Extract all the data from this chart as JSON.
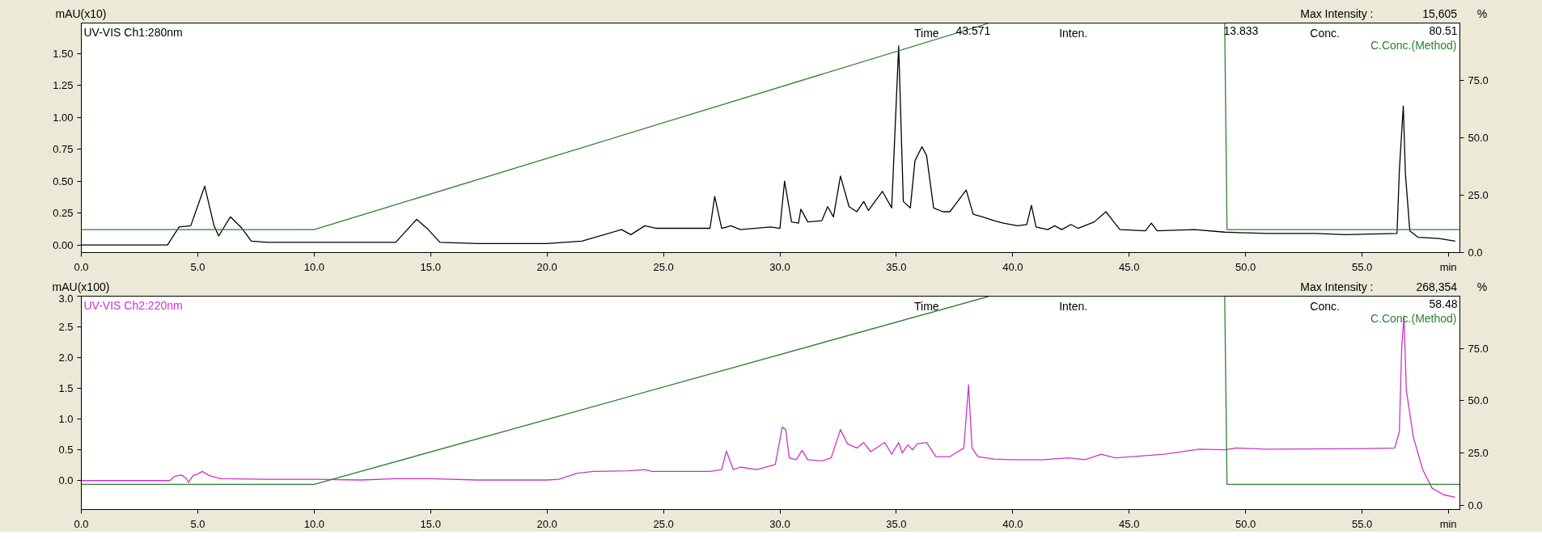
{
  "chart_data": [
    {
      "type": "line",
      "ylabel": "mAU(x10)",
      "y2label": "%",
      "grid": false,
      "xlim": [
        0,
        59.2
      ],
      "xticks": [
        {
          "value": 0,
          "label": "0.0"
        },
        {
          "value": 5,
          "label": "5.0"
        },
        {
          "value": 10,
          "label": "10.0"
        },
        {
          "value": 15,
          "label": "15.0"
        },
        {
          "value": 20,
          "label": "20.0"
        },
        {
          "value": 25,
          "label": "25.0"
        },
        {
          "value": 30,
          "label": "30.0"
        },
        {
          "value": 35,
          "label": "35.0"
        },
        {
          "value": 40,
          "label": "40.0"
        },
        {
          "value": 45,
          "label": "45.0"
        },
        {
          "value": 50,
          "label": "50.0"
        },
        {
          "value": 55,
          "label": "55.0"
        },
        {
          "value": 58.7,
          "label": "min"
        }
      ],
      "ylim": [
        -0.06,
        1.74
      ],
      "yticks": [
        {
          "value": 0,
          "label": "0.00"
        },
        {
          "value": 0.25,
          "label": "0.25"
        },
        {
          "value": 0.5,
          "label": "0.50"
        },
        {
          "value": 0.75,
          "label": "0.75"
        },
        {
          "value": 1,
          "label": "1.00"
        },
        {
          "value": 1.25,
          "label": "1.25"
        },
        {
          "value": 1.5,
          "label": "1.50"
        }
      ],
      "y2lim": [
        0,
        100
      ],
      "y2ticks": [
        {
          "value": 0,
          "label": "0.0"
        },
        {
          "value": 25,
          "label": "25.0"
        },
        {
          "value": 50,
          "label": "50.0"
        },
        {
          "value": 75,
          "label": "75.0"
        }
      ],
      "annotations": [
        "Time",
        "43.571",
        "Inten.",
        "13.833",
        "Conc.",
        "80.51",
        "Max Intensity :",
        "15,605"
      ],
      "series": [
        {
          "name": "UV-VIS Ch1:280nm",
          "color": "#000000",
          "x": [
            0,
            3.7,
            4.2,
            4.7,
            5.3,
            5.7,
            5.9,
            6.4,
            6.9,
            7.3,
            8,
            10,
            13.5,
            14.0,
            14.4,
            14.9,
            15.4,
            17,
            20,
            21.5,
            23.2,
            23.6,
            24.2,
            24.7,
            27.0,
            27.2,
            27.5,
            27.9,
            28.3,
            29.6,
            30.0,
            30.2,
            30.5,
            30.8,
            30.9,
            31.2,
            31.8,
            32.05,
            32.3,
            32.6,
            32.97,
            33.3,
            33.6,
            33.8,
            34.4,
            34.8,
            35.1,
            35.3,
            35.6,
            35.8,
            36.1,
            36.3,
            36.6,
            37.0,
            37.3,
            38.0,
            38.3,
            38.7,
            39.2,
            39.6,
            40.2,
            40.6,
            40.8,
            41.0,
            41.5,
            41.8,
            42.1,
            42.5,
            42.8,
            43.5,
            44.0,
            44.3,
            44.6,
            45.7,
            45.95,
            46.2,
            47.8,
            49.1,
            50.9,
            53.0,
            54.3,
            56.5,
            56.6,
            56.77,
            56.86,
            57.05,
            57.4,
            58.3,
            59.0
          ],
          "values": [
            0.0,
            0.0,
            0.14,
            0.15,
            0.46,
            0.15,
            0.07,
            0.22,
            0.13,
            0.03,
            0.02,
            0.02,
            0.02,
            0.12,
            0.2,
            0.12,
            0.02,
            0.01,
            0.01,
            0.03,
            0.12,
            0.08,
            0.15,
            0.13,
            0.13,
            0.38,
            0.13,
            0.15,
            0.12,
            0.14,
            0.13,
            0.5,
            0.18,
            0.17,
            0.28,
            0.18,
            0.19,
            0.3,
            0.22,
            0.54,
            0.3,
            0.26,
            0.34,
            0.27,
            0.42,
            0.29,
            1.56,
            0.34,
            0.29,
            0.66,
            0.77,
            0.7,
            0.29,
            0.26,
            0.26,
            0.43,
            0.24,
            0.22,
            0.19,
            0.17,
            0.15,
            0.16,
            0.31,
            0.14,
            0.12,
            0.15,
            0.12,
            0.16,
            0.13,
            0.18,
            0.26,
            0.19,
            0.12,
            0.11,
            0.17,
            0.11,
            0.12,
            0.1,
            0.09,
            0.09,
            0.08,
            0.09,
            0.58,
            1.09,
            0.56,
            0.11,
            0.06,
            0.05,
            0.03
          ]
        },
        {
          "name": "C.Conc.(Method)",
          "color": "#2f7f2f",
          "axis": "y2",
          "x": [
            0,
            10,
            39,
            49.1,
            49.2,
            59.2
          ],
          "values": [
            10,
            10,
            100,
            100,
            10,
            10
          ]
        }
      ]
    },
    {
      "type": "line",
      "ylabel": "mAU(x100)",
      "y2label": "%",
      "grid": false,
      "xlim": [
        0,
        59.2
      ],
      "xticks": [
        {
          "value": 0,
          "label": "0.0"
        },
        {
          "value": 5,
          "label": "5.0"
        },
        {
          "value": 10,
          "label": "10.0"
        },
        {
          "value": 15,
          "label": "15.0"
        },
        {
          "value": 20,
          "label": "20.0"
        },
        {
          "value": 25,
          "label": "25.0"
        },
        {
          "value": 30,
          "label": "30.0"
        },
        {
          "value": 35,
          "label": "35.0"
        },
        {
          "value": 40,
          "label": "40.0"
        },
        {
          "value": 45,
          "label": "45.0"
        },
        {
          "value": 50,
          "label": "50.0"
        },
        {
          "value": 55,
          "label": "55.0"
        },
        {
          "value": 58.7,
          "label": "min"
        }
      ],
      "ylim": [
        -0.47,
        3.0
      ],
      "yticks": [
        {
          "value": 0,
          "label": "0.0"
        },
        {
          "value": 0.5,
          "label": "0.5"
        },
        {
          "value": 1,
          "label": "1.0"
        },
        {
          "value": 1.5,
          "label": "1.5"
        },
        {
          "value": 2,
          "label": "2.0"
        },
        {
          "value": 2.5,
          "label": "2.5"
        },
        {
          "value": 3,
          "label": "3.0"
        }
      ],
      "y2lim": [
        -2,
        100
      ],
      "y2ticks": [
        {
          "value": 0,
          "label": "0.0"
        },
        {
          "value": 25,
          "label": "25.0"
        },
        {
          "value": 50,
          "label": "50.0"
        },
        {
          "value": 75,
          "label": "75.0"
        }
      ],
      "annotations": [
        "Time",
        "Inten.",
        "Conc.",
        "58.48",
        "Max Intensity :",
        "268,354"
      ],
      "series": [
        {
          "name": "UV-VIS Ch2:220nm",
          "color": "#cc33cc",
          "x": [
            0,
            3.8,
            4.0,
            4.3,
            4.5,
            4.6,
            4.8,
            5.0,
            5.2,
            5.5,
            6.0,
            8,
            10,
            12,
            13.5,
            15,
            17,
            20,
            20.5,
            21.3,
            22,
            23.5,
            24.2,
            24.5,
            27,
            27.5,
            27.7,
            28.0,
            28.3,
            29.0,
            29.8,
            30.1,
            30.25,
            30.4,
            30.7,
            30.95,
            31.2,
            31.8,
            32.2,
            32.6,
            32.9,
            33.3,
            33.6,
            33.9,
            34.5,
            34.8,
            35.1,
            35.25,
            35.5,
            35.7,
            35.9,
            36.3,
            36.7,
            37.3,
            37.9,
            38.1,
            38.25,
            38.5,
            39.2,
            40.0,
            41.3,
            42.4,
            43.1,
            43.8,
            44.4,
            46.5,
            48.0,
            49.1,
            49.6,
            50.9,
            55.2,
            56.4,
            56.6,
            56.7,
            56.8,
            56.9,
            57.2,
            57.6,
            58.0,
            58.5,
            59.0
          ],
          "values": [
            0.0,
            0.0,
            0.07,
            0.09,
            0.04,
            -0.03,
            0.08,
            0.11,
            0.15,
            0.08,
            0.03,
            0.02,
            0.02,
            0.01,
            0.03,
            0.03,
            0.01,
            0.01,
            0.02,
            0.12,
            0.15,
            0.16,
            0.18,
            0.15,
            0.15,
            0.18,
            0.48,
            0.18,
            0.22,
            0.18,
            0.26,
            0.87,
            0.83,
            0.37,
            0.34,
            0.49,
            0.34,
            0.32,
            0.37,
            0.83,
            0.6,
            0.53,
            0.62,
            0.47,
            0.62,
            0.43,
            0.62,
            0.45,
            0.58,
            0.5,
            0.6,
            0.62,
            0.39,
            0.39,
            0.53,
            1.56,
            0.53,
            0.39,
            0.35,
            0.34,
            0.34,
            0.37,
            0.34,
            0.43,
            0.37,
            0.43,
            0.51,
            0.5,
            0.53,
            0.51,
            0.52,
            0.53,
            0.79,
            2.15,
            2.68,
            1.47,
            0.71,
            0.18,
            -0.12,
            -0.23,
            -0.27
          ]
        },
        {
          "name": "C.Conc.(Method)",
          "color": "#2f7f2f",
          "axis": "y2",
          "x": [
            0,
            10,
            39,
            49.1,
            49.2,
            59.2
          ],
          "values": [
            10,
            10,
            100,
            100,
            10,
            10
          ]
        }
      ]
    }
  ]
}
